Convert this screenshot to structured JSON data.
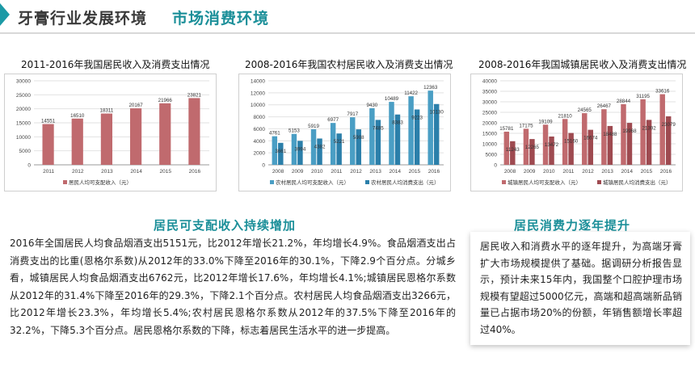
{
  "header": {
    "title": "牙膏行业发展环境",
    "subtitle": "市场消费环境"
  },
  "charts": {
    "c1_title": "2011-2016年我国居民收入及消费支出情况",
    "c2_title": "2008-2016年我国农村居民收入及消费支出情况",
    "c3_title": "2008-2016年我国城镇居民收入及消费支出情况"
  },
  "chart_data": [
    {
      "type": "bar",
      "title": "2011-2016年我国居民收入及消费支出情况",
      "categories": [
        "2011",
        "2012",
        "2013",
        "2014",
        "2015",
        "2016"
      ],
      "series": [
        {
          "name": "居民人均可支配收入（元）",
          "values": [
            14551,
            16510,
            18311,
            20167,
            21966,
            23821
          ]
        }
      ],
      "ylim": [
        0,
        30000
      ],
      "yticks": [
        0,
        5000,
        10000,
        15000,
        20000,
        25000,
        30000
      ],
      "legend": "bottom",
      "colors": [
        "#c06a6e"
      ]
    },
    {
      "type": "bar",
      "title": "2008-2016年我国农村居民收入及消费支出情况",
      "categories": [
        "2008",
        "2009",
        "2010",
        "2011",
        "2012",
        "2013",
        "2014",
        "2015",
        "2016"
      ],
      "series": [
        {
          "name": "农村居民人均可支配收入（元）",
          "values": [
            4761,
            5153,
            5919,
            6977,
            7917,
            9430,
            10489,
            11422,
            12363
          ]
        },
        {
          "name": "农村居民人均消费支出（元）",
          "values": [
            3661,
            3994,
            4382,
            5221,
            5908,
            7485,
            8383,
            9223,
            10130
          ]
        }
      ],
      "ylim": [
        0,
        14000
      ],
      "yticks": [
        0,
        2000,
        4000,
        6000,
        8000,
        10000,
        12000,
        14000
      ],
      "legend": "bottom",
      "colors": [
        "#4a9ec4",
        "#2b7faa"
      ]
    },
    {
      "type": "bar",
      "title": "2008-2016年我国城镇居民收入及消费支出情况",
      "categories": [
        "2008",
        "2009",
        "2010",
        "2011",
        "2012",
        "2013",
        "2014",
        "2015",
        "2016"
      ],
      "series": [
        {
          "name": "城镇居民人均可支配收入（元）",
          "values": [
            15781,
            17175,
            19109,
            21810,
            24565,
            26467,
            28844,
            31195,
            33616
          ]
        },
        {
          "name": "城镇居民人均消费支出（元）",
          "values": [
            11243,
            12265,
            13472,
            15160,
            16674,
            18488,
            19968,
            21392,
            23079
          ]
        }
      ],
      "ylim": [
        0,
        40000
      ],
      "yticks": [
        0,
        5000,
        10000,
        15000,
        20000,
        25000,
        30000,
        35000,
        40000
      ],
      "legend": "bottom",
      "colors": [
        "#c06a6e",
        "#9e4a50"
      ]
    }
  ],
  "left_section": {
    "heading": "居民可支配收入持续增加",
    "text": "2016年全国居民人均食品烟酒支出5151元，比2012年增长21.2%，年均增长4.9%。食品烟酒支出占消费支出的比重(恩格尔系数)从2012年的33.0%下降至2016年的30.1%，下降2.9个百分点。分城乡看，城镇居民人均食品烟酒支出6762元，比2012年增长17.6%，年均增长4.1%;城镇居民恩格尔系数从2012年的31.4%下降至2016年的29.3%，下降2.1个百分点。农村居民人均食品烟酒支出3266元，比2012年增长23.3%，年均增长5.4%;农村居民恩格尔系数从2012年的37.5%下降至2016年的32.2%，下降5.3个百分点。居民恩格尔系数的下降，标志着居民生活水平的进一步提高。"
  },
  "right_section": {
    "heading": "居民消费力逐年提升",
    "text": "居民收入和消费水平的逐年提升，为高端牙膏扩大市场规模提供了基础。据调研分析报告显示，预计未来15年内，我国整个口腔护理市场规模有望超过5000亿元，高端和超高端新品销量已占据市场20%的份额，年销售额增长率超过40%。"
  }
}
